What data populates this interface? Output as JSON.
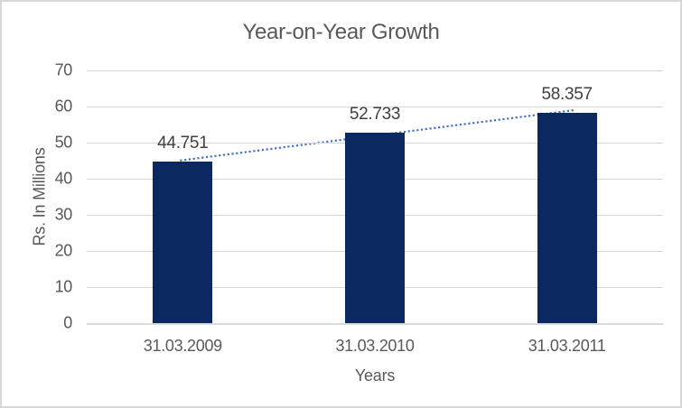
{
  "chart_data": {
    "type": "bar",
    "title": "Year-on-Year Growth",
    "categories": [
      "31.03.2009",
      "31.03.2010",
      "31.03.2011"
    ],
    "values": [
      44.751,
      52.733,
      58.357
    ],
    "data_labels": [
      "44.751",
      "52.733",
      "58.357"
    ],
    "xlabel": "Years",
    "ylabel": "Rs. In Millions",
    "ylim": [
      0,
      70
    ],
    "ytick_step": 10,
    "yticks": [
      "0",
      "10",
      "20",
      "30",
      "40",
      "50",
      "60",
      "70"
    ],
    "grid": true,
    "legend": "none",
    "trendline": {
      "type": "linear",
      "style": "dotted"
    }
  },
  "colors": {
    "bar": "#0b2860",
    "trendline": "#4472c4",
    "gridline": "#d9d9d9",
    "axis_line": "#dadada",
    "title_text": "#595959",
    "axis_text": "#595959",
    "data_label_text": "#404040",
    "frame_border": "#d7d7d7",
    "background": "#ffffff"
  }
}
